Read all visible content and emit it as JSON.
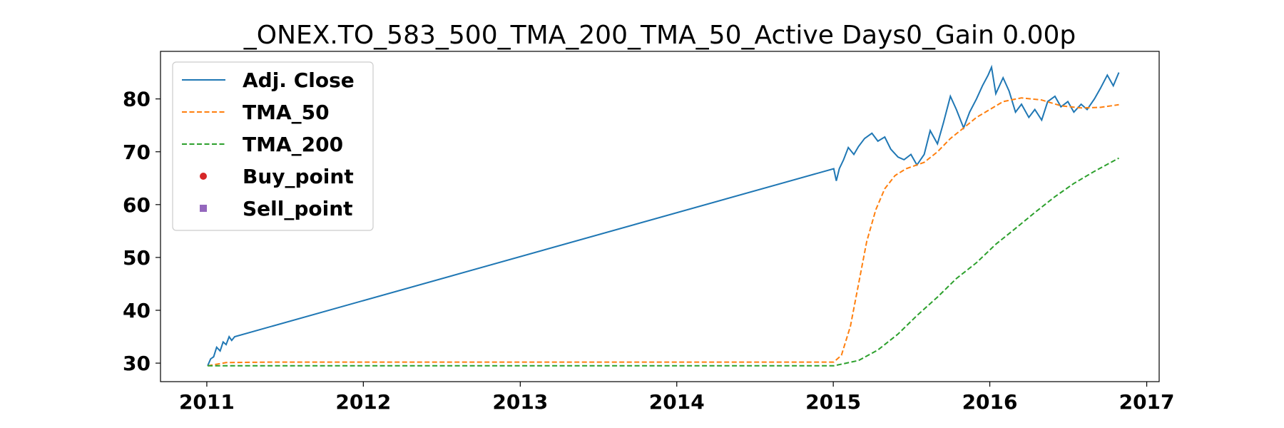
{
  "chart_data": {
    "type": "line",
    "title": "_ONEX.TO_583_500_TMA_200_TMA_50_Active Days0_Gain   0.00p",
    "xlabel": "",
    "ylabel": "",
    "x_ticks": [
      "2011",
      "2012",
      "2013",
      "2014",
      "2015",
      "2016",
      "2017"
    ],
    "y_ticks": [
      "30",
      "40",
      "50",
      "60",
      "70",
      "80"
    ],
    "xlim": [
      "2010-09-15",
      "2017-01-30"
    ],
    "ylim": [
      26.5,
      89
    ],
    "grid": false,
    "legend_position": "top-left",
    "series": [
      {
        "name": "Adj. Close",
        "style": "solid",
        "color": "#1f77b4",
        "points": [
          [
            "2011-01-03",
            29.5
          ],
          [
            "2011-01-10",
            30.8
          ],
          [
            "2011-01-17",
            31.2
          ],
          [
            "2011-01-24",
            33.0
          ],
          [
            "2011-02-01",
            32.3
          ],
          [
            "2011-02-08",
            34.0
          ],
          [
            "2011-02-15",
            33.5
          ],
          [
            "2011-02-22",
            35.0
          ],
          [
            "2011-02-28",
            34.3
          ],
          [
            "2011-03-07",
            35.0
          ],
          [
            "2015-01-02",
            66.8
          ],
          [
            "2015-01-08",
            64.5
          ],
          [
            "2015-01-15",
            66.8
          ],
          [
            "2015-01-25",
            68.5
          ],
          [
            "2015-02-05",
            70.8
          ],
          [
            "2015-02-18",
            69.5
          ],
          [
            "2015-03-01",
            71.0
          ],
          [
            "2015-03-15",
            72.5
          ],
          [
            "2015-04-01",
            73.5
          ],
          [
            "2015-04-15",
            72.0
          ],
          [
            "2015-05-01",
            72.8
          ],
          [
            "2015-05-15",
            70.5
          ],
          [
            "2015-06-01",
            69.0
          ],
          [
            "2015-06-15",
            68.5
          ],
          [
            "2015-07-01",
            69.5
          ],
          [
            "2015-07-15",
            67.5
          ],
          [
            "2015-08-01",
            69.5
          ],
          [
            "2015-08-15",
            74.0
          ],
          [
            "2015-09-01",
            71.5
          ],
          [
            "2015-09-15",
            75.5
          ],
          [
            "2015-10-01",
            80.5
          ],
          [
            "2015-10-15",
            78.0
          ],
          [
            "2015-11-01",
            74.5
          ],
          [
            "2015-11-15",
            77.5
          ],
          [
            "2015-12-01",
            80.0
          ],
          [
            "2015-12-15",
            82.5
          ],
          [
            "2015-12-28",
            84.5
          ],
          [
            "2016-01-05",
            86.0
          ],
          [
            "2016-01-15",
            81.0
          ],
          [
            "2016-02-01",
            84.0
          ],
          [
            "2016-02-15",
            81.5
          ],
          [
            "2016-03-01",
            77.5
          ],
          [
            "2016-03-15",
            79.0
          ],
          [
            "2016-04-01",
            76.5
          ],
          [
            "2016-04-15",
            78.0
          ],
          [
            "2016-05-01",
            76.0
          ],
          [
            "2016-05-15",
            79.5
          ],
          [
            "2016-06-01",
            80.5
          ],
          [
            "2016-06-15",
            78.5
          ],
          [
            "2016-07-01",
            79.5
          ],
          [
            "2016-07-15",
            77.5
          ],
          [
            "2016-08-01",
            79.0
          ],
          [
            "2016-08-15",
            78.0
          ],
          [
            "2016-09-01",
            80.0
          ],
          [
            "2016-09-15",
            82.0
          ],
          [
            "2016-10-01",
            84.5
          ],
          [
            "2016-10-15",
            82.5
          ],
          [
            "2016-10-28",
            85.0
          ]
        ]
      },
      {
        "name": "TMA_50",
        "style": "dashed",
        "color": "#ff7f0e",
        "points": [
          [
            "2011-01-03",
            29.5
          ],
          [
            "2011-02-15",
            30.1
          ],
          [
            "2011-06-01",
            30.2
          ],
          [
            "2015-01-02",
            30.2
          ],
          [
            "2015-01-20",
            31.5
          ],
          [
            "2015-02-10",
            37.0
          ],
          [
            "2015-03-01",
            45.0
          ],
          [
            "2015-03-20",
            53.0
          ],
          [
            "2015-04-10",
            59.0
          ],
          [
            "2015-05-01",
            63.0
          ],
          [
            "2015-05-25",
            65.5
          ],
          [
            "2015-06-20",
            66.8
          ],
          [
            "2015-08-01",
            68.0
          ],
          [
            "2015-09-01",
            70.0
          ],
          [
            "2015-10-01",
            72.5
          ],
          [
            "2015-11-01",
            74.5
          ],
          [
            "2015-12-01",
            76.5
          ],
          [
            "2016-01-01",
            78.0
          ],
          [
            "2016-02-01",
            79.5
          ],
          [
            "2016-03-15",
            80.2
          ],
          [
            "2016-05-01",
            79.8
          ],
          [
            "2016-06-15",
            78.7
          ],
          [
            "2016-08-01",
            78.3
          ],
          [
            "2016-09-15",
            78.4
          ],
          [
            "2016-10-28",
            78.9
          ]
        ]
      },
      {
        "name": "TMA_200",
        "style": "dashed",
        "color": "#2ca02c",
        "points": [
          [
            "2011-01-03",
            29.5
          ],
          [
            "2015-01-02",
            29.5
          ],
          [
            "2015-03-01",
            30.5
          ],
          [
            "2015-04-15",
            32.5
          ],
          [
            "2015-06-01",
            35.5
          ],
          [
            "2015-07-15",
            39.0
          ],
          [
            "2015-09-01",
            42.5
          ],
          [
            "2015-10-15",
            46.0
          ],
          [
            "2015-12-01",
            49.0
          ],
          [
            "2016-01-15",
            52.5
          ],
          [
            "2016-03-01",
            55.5
          ],
          [
            "2016-04-15",
            58.5
          ],
          [
            "2016-06-01",
            61.5
          ],
          [
            "2016-07-15",
            64.0
          ],
          [
            "2016-09-01",
            66.3
          ],
          [
            "2016-10-28",
            68.8
          ]
        ]
      },
      {
        "name": "Buy_point",
        "style": "marker-circle",
        "color": "#d62728",
        "points": []
      },
      {
        "name": "Sell_point",
        "style": "marker-square",
        "color": "#9467bd",
        "points": []
      }
    ]
  }
}
